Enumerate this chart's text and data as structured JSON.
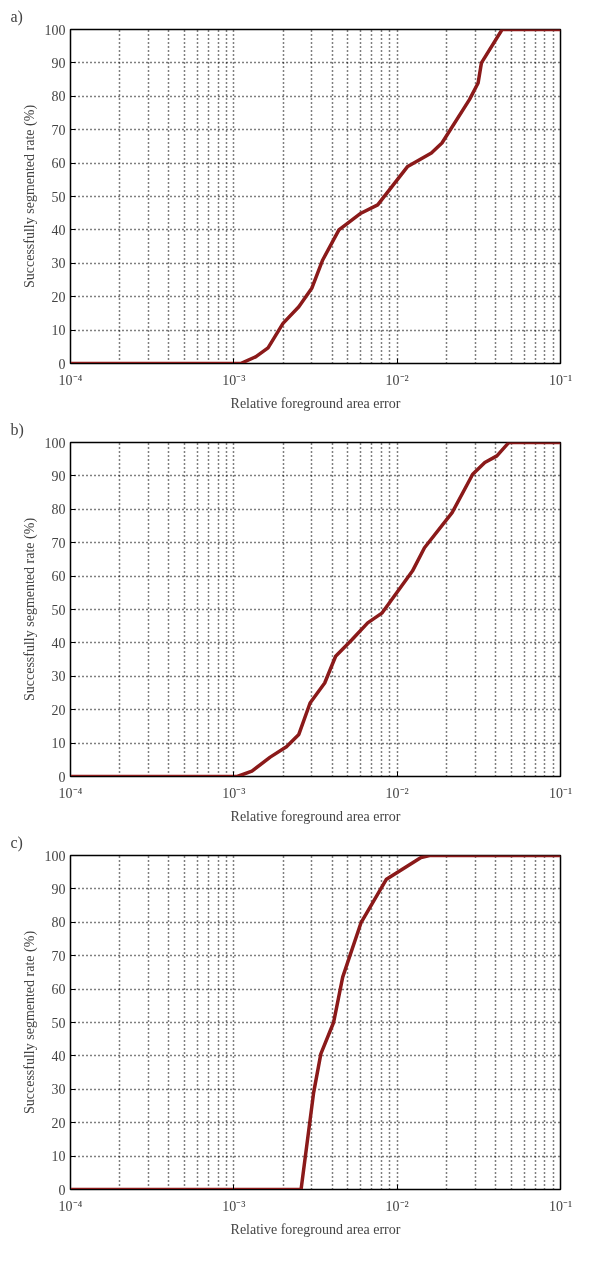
{
  "chart_data": [
    {
      "type": "line",
      "title": "a)",
      "xlabel": "Relative foreground area error",
      "ylabel": "Successfully segmented rate (%)",
      "log": "x",
      "grid": true,
      "line_style": "solid",
      "marker": "none",
      "xlim": [
        0.0001,
        0.1
      ],
      "ylim": [
        0,
        100
      ],
      "xticks": [
        {
          "value": 0.0001,
          "label": "10⁻⁴"
        },
        {
          "value": 0.001,
          "label": "10⁻³"
        },
        {
          "value": 0.01,
          "label": "10⁻²"
        },
        {
          "value": 0.1,
          "label": "10⁻¹"
        }
      ],
      "yticks": [
        0,
        10,
        20,
        30,
        40,
        50,
        60,
        70,
        80,
        90,
        100
      ],
      "series": [
        {
          "color": "#8b1a1a",
          "x": [
            0.0001,
            0.0011,
            0.00136,
            0.00162,
            0.002,
            0.0025,
            0.003,
            0.0035,
            0.0044,
            0.006,
            0.0076,
            0.0116,
            0.0162,
            0.0188,
            0.0277,
            0.0313,
            0.0328,
            0.0439,
            0.1
          ],
          "values": [
            0,
            0,
            2,
            4.7,
            12,
            17,
            22.5,
            31,
            40,
            45,
            47.5,
            59,
            63,
            66,
            79,
            84,
            90,
            100,
            100
          ]
        }
      ]
    },
    {
      "type": "line",
      "title": "b)",
      "xlabel": "Relative foreground area error",
      "ylabel": "Successfully segmented rate (%)",
      "log": "x",
      "grid": true,
      "line_style": "solid",
      "marker": "none",
      "xlim": [
        0.0001,
        0.1
      ],
      "ylim": [
        0,
        100
      ],
      "xticks": [
        {
          "value": 0.0001,
          "label": "10⁻⁴"
        },
        {
          "value": 0.001,
          "label": "10⁻³"
        },
        {
          "value": 0.01,
          "label": "10⁻²"
        },
        {
          "value": 0.1,
          "label": "10⁻¹"
        }
      ],
      "yticks": [
        0,
        10,
        20,
        30,
        40,
        50,
        60,
        70,
        80,
        90,
        100
      ],
      "series": [
        {
          "color": "#8b1a1a",
          "x": [
            0.0001,
            0.00105,
            0.00129,
            0.00167,
            0.0021,
            0.0025,
            0.00293,
            0.0036,
            0.0042,
            0.0053,
            0.0066,
            0.0081,
            0.0124,
            0.0147,
            0.0217,
            0.029,
            0.0344,
            0.0408,
            0.0483,
            0.1
          ],
          "values": [
            0,
            0,
            1.6,
            5.8,
            8.9,
            12.6,
            22,
            28,
            36,
            41,
            46,
            49,
            61.5,
            68.5,
            79,
            90.5,
            94,
            96,
            100,
            100
          ]
        }
      ]
    },
    {
      "type": "line",
      "title": "c)",
      "xlabel": "Relative foreground area error",
      "ylabel": "Successfully segmented rate (%)",
      "log": "x",
      "grid": true,
      "line_style": "solid",
      "marker": "none",
      "xlim": [
        0.0001,
        0.1
      ],
      "ylim": [
        0,
        100
      ],
      "xticks": [
        {
          "value": 0.0001,
          "label": "10⁻⁴"
        },
        {
          "value": 0.001,
          "label": "10⁻³"
        },
        {
          "value": 0.01,
          "label": "10⁻²"
        },
        {
          "value": 0.1,
          "label": "10⁻¹"
        }
      ],
      "yticks": [
        0,
        10,
        20,
        30,
        40,
        50,
        60,
        70,
        80,
        90,
        100
      ],
      "series": [
        {
          "color": "#8b1a1a",
          "x": [
            0.0001,
            0.00258,
            0.00308,
            0.00341,
            0.00408,
            0.00464,
            0.006,
            0.0086,
            0.014,
            0.0158,
            0.1
          ],
          "values": [
            0,
            0,
            29,
            40.6,
            50,
            63.6,
            79.8,
            92.9,
            99.4,
            100,
            100
          ]
        }
      ]
    }
  ]
}
